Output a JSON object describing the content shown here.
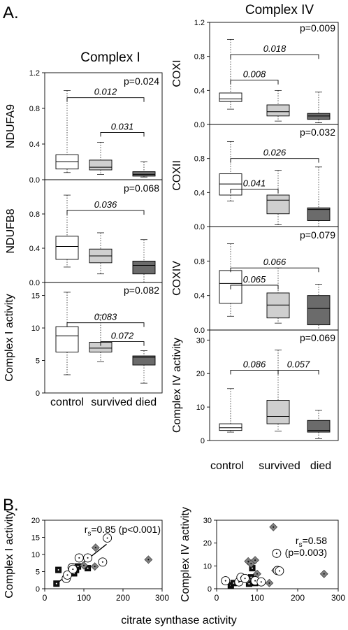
{
  "section_a_label": "A.",
  "section_b_label": "B.",
  "complex1_title": "Complex I",
  "complex4_title": "Complex IV",
  "group_labels": [
    "control",
    "survived",
    "died"
  ],
  "colors": {
    "control": "#ffffff",
    "survived": "#cfcfcf",
    "died": "#6b6b6b",
    "grid": "#000000"
  },
  "chart_data": [
    {
      "type": "box",
      "id": "ndufa9",
      "ylabel": "NDUFA9",
      "ylim": [
        0,
        1.2
      ],
      "yticks": [
        "0.0",
        "0.4",
        "0.8",
        "1.2"
      ],
      "p": "p=0.024",
      "boxes": [
        {
          "group": "control",
          "min": 0.08,
          "q1": 0.12,
          "median": 0.2,
          "q3": 0.28,
          "max": 1.0
        },
        {
          "group": "survived",
          "min": 0.06,
          "q1": 0.11,
          "median": 0.14,
          "q3": 0.22,
          "max": 0.42
        },
        {
          "group": "died",
          "min": 0.03,
          "q1": 0.04,
          "median": 0.06,
          "q3": 0.09,
          "max": 0.2
        }
      ],
      "brackets": [
        {
          "from": 0,
          "to": 2,
          "y": 0.92,
          "label": "0.012"
        },
        {
          "from": 1,
          "to": 2,
          "y": 0.53,
          "label": "0.031"
        }
      ]
    },
    {
      "type": "box",
      "id": "ndufb8",
      "ylabel": "NDUFB8",
      "ylim": [
        0,
        1.2
      ],
      "yticks": [
        "0.0",
        "0.4",
        "0.8"
      ],
      "p": "p=0.068",
      "boxes": [
        {
          "group": "control",
          "min": 0.18,
          "q1": 0.27,
          "median": 0.42,
          "q3": 0.54,
          "max": 1.02
        },
        {
          "group": "survived",
          "min": 0.1,
          "q1": 0.23,
          "median": 0.31,
          "q3": 0.39,
          "max": 0.58
        },
        {
          "group": "died",
          "min": 0.0,
          "q1": 0.1,
          "median": 0.2,
          "q3": 0.25,
          "max": 0.5
        }
      ],
      "brackets": [
        {
          "from": 0,
          "to": 2,
          "y": 0.84,
          "label": "0.036"
        }
      ]
    },
    {
      "type": "box",
      "id": "complex1",
      "ylabel": "Complex I activity",
      "ylim": [
        0,
        17
      ],
      "yticks": [
        "0",
        "5",
        "10",
        "15"
      ],
      "p": "p=0.082",
      "boxes": [
        {
          "group": "control",
          "min": 2.8,
          "q1": 6.3,
          "median": 8.8,
          "q3": 10.2,
          "max": 15.5
        },
        {
          "group": "survived",
          "min": 4.8,
          "q1": 6.3,
          "median": 6.9,
          "q3": 7.8,
          "max": 12.0
        },
        {
          "group": "died",
          "min": 1.5,
          "q1": 4.3,
          "median": 5.5,
          "q3": 5.7,
          "max": 6.5
        }
      ],
      "brackets": [
        {
          "from": 0,
          "to": 2,
          "y": 10.8,
          "label": "0.083"
        },
        {
          "from": 1,
          "to": 2,
          "y": 7.9,
          "label": "0.072"
        }
      ]
    },
    {
      "type": "box",
      "id": "coxi",
      "ylabel": "COXI",
      "ylim": [
        0,
        1.2
      ],
      "yticks": [
        "0.0",
        "0.4",
        "0.8",
        "1.2"
      ],
      "p": "p=0.009",
      "boxes": [
        {
          "group": "control",
          "min": 0.18,
          "q1": 0.27,
          "median": 0.3,
          "q3": 0.37,
          "max": 1.0
        },
        {
          "group": "survived",
          "min": 0.04,
          "q1": 0.1,
          "median": 0.15,
          "q3": 0.23,
          "max": 0.4
        },
        {
          "group": "died",
          "min": 0.02,
          "q1": 0.06,
          "median": 0.1,
          "q3": 0.13,
          "max": 0.38
        }
      ],
      "brackets": [
        {
          "from": 0,
          "to": 2,
          "y": 0.82,
          "label": "0.018"
        },
        {
          "from": 0,
          "to": 1,
          "y": 0.52,
          "label": "0.008"
        }
      ]
    },
    {
      "type": "box",
      "id": "coxii",
      "ylabel": "COXII",
      "ylim": [
        0,
        1.2
      ],
      "yticks": [
        "0.0",
        "0.4",
        "0.8"
      ],
      "p": "p=0.032",
      "boxes": [
        {
          "group": "control",
          "min": 0.3,
          "q1": 0.37,
          "median": 0.5,
          "q3": 0.62,
          "max": 1.0
        },
        {
          "group": "survived",
          "min": 0.02,
          "q1": 0.15,
          "median": 0.31,
          "q3": 0.37,
          "max": 0.66
        },
        {
          "group": "died",
          "min": 0.0,
          "q1": 0.07,
          "median": 0.2,
          "q3": 0.22,
          "max": 0.7
        }
      ],
      "brackets": [
        {
          "from": 0,
          "to": 2,
          "y": 0.8,
          "label": "0.026"
        },
        {
          "from": 0,
          "to": 1,
          "y": 0.44,
          "label": "0.041"
        }
      ]
    },
    {
      "type": "box",
      "id": "coxiv",
      "ylabel": "COXIV",
      "ylim": [
        0,
        1.2
      ],
      "yticks": [
        "0.0",
        "0.4",
        "0.8"
      ],
      "p": "p=0.079",
      "boxes": [
        {
          "group": "control",
          "min": 0.16,
          "q1": 0.31,
          "median": 0.54,
          "q3": 0.69,
          "max": 1.0
        },
        {
          "group": "survived",
          "min": 0.08,
          "q1": 0.14,
          "median": 0.29,
          "q3": 0.43,
          "max": 0.72
        },
        {
          "group": "died",
          "min": 0.0,
          "q1": 0.06,
          "median": 0.25,
          "q3": 0.4,
          "max": 0.53
        }
      ],
      "brackets": [
        {
          "from": 0,
          "to": 2,
          "y": 0.72,
          "label": "0.066"
        },
        {
          "from": 0,
          "to": 1,
          "y": 0.52,
          "label": "0.065"
        }
      ]
    },
    {
      "type": "box",
      "id": "complex4",
      "ylabel": "Complex IV activity",
      "ylim": [
        0,
        33
      ],
      "yticks": [
        "0",
        "10",
        "20",
        "30"
      ],
      "p": "p=0.069",
      "boxes": [
        {
          "group": "control",
          "min": 2.5,
          "q1": 3.0,
          "median": 3.8,
          "q3": 5.0,
          "max": 15.5
        },
        {
          "group": "survived",
          "min": 2.8,
          "q1": 5.0,
          "median": 7.2,
          "q3": 12.0,
          "max": 27.0
        },
        {
          "group": "died",
          "min": 0.5,
          "q1": 2.5,
          "median": 3.0,
          "q3": 6.0,
          "max": 9.0
        }
      ],
      "brackets": [
        {
          "from": 0,
          "to": 1,
          "y": 21.0,
          "label": "0.086"
        },
        {
          "from": 1,
          "to": 2,
          "y": 21.0,
          "label": "0.057"
        }
      ]
    },
    {
      "type": "scatter",
      "id": "scatter-c1",
      "ylabel": "Complex I activity",
      "xlim": [
        0,
        300
      ],
      "ylim": [
        0,
        20
      ],
      "xticks": [
        "0",
        "100",
        "200",
        "300"
      ],
      "yticks": [
        "0",
        "5",
        "10",
        "15",
        "20"
      ],
      "stat_main": "r",
      "stat_sub": "s",
      "stat_rest": "=0.85 (p<0.001)",
      "fit": [
        [
          28,
          1.3
        ],
        [
          158,
          13.0
        ]
      ],
      "points": [
        {
          "x": 30,
          "y": 1.5,
          "g": "square"
        },
        {
          "x": 35,
          "y": 5.5,
          "g": "square"
        },
        {
          "x": 75,
          "y": 4.5,
          "g": "square"
        },
        {
          "x": 80,
          "y": 5.5,
          "g": "square"
        },
        {
          "x": 85,
          "y": 6.5,
          "g": "square"
        },
        {
          "x": 110,
          "y": 6.0,
          "g": "square"
        },
        {
          "x": 130,
          "y": 12.0,
          "g": "diamond"
        },
        {
          "x": 128,
          "y": 6.5,
          "g": "diamond"
        },
        {
          "x": 100,
          "y": 6.8,
          "g": "diamond"
        },
        {
          "x": 265,
          "y": 8.5,
          "g": "diamond"
        },
        {
          "x": 55,
          "y": 3.0,
          "g": "circle"
        },
        {
          "x": 58,
          "y": 4.0,
          "g": "circle"
        },
        {
          "x": 70,
          "y": 6.2,
          "g": "circle"
        },
        {
          "x": 72,
          "y": 5.7,
          "g": "circle"
        },
        {
          "x": 88,
          "y": 9.0,
          "g": "circle"
        },
        {
          "x": 110,
          "y": 9.0,
          "g": "circle"
        },
        {
          "x": 148,
          "y": 7.8,
          "g": "circle"
        },
        {
          "x": 160,
          "y": 14.8,
          "g": "circle"
        }
      ]
    },
    {
      "type": "scatter",
      "id": "scatter-c4",
      "ylabel": "Complex IV activity",
      "xlim": [
        0,
        300
      ],
      "ylim": [
        0,
        30
      ],
      "xticks": [
        "0",
        "100",
        "200",
        "300"
      ],
      "yticks": [
        "0",
        "10",
        "20",
        "30"
      ],
      "stat_main": "r",
      "stat_sub": "s",
      "stat_rest": "=0.58",
      "stat_line2": "(p=0.003)",
      "fit": [],
      "points": [
        {
          "x": 35,
          "y": 1.5,
          "g": "square"
        },
        {
          "x": 42,
          "y": 2.5,
          "g": "square"
        },
        {
          "x": 80,
          "y": 2.2,
          "g": "square"
        },
        {
          "x": 85,
          "y": 5.0,
          "g": "square"
        },
        {
          "x": 88,
          "y": 9.0,
          "g": "square"
        },
        {
          "x": 95,
          "y": 2.5,
          "g": "square"
        },
        {
          "x": 78,
          "y": 12.0,
          "g": "diamond"
        },
        {
          "x": 85,
          "y": 11.0,
          "g": "diamond"
        },
        {
          "x": 95,
          "y": 12.5,
          "g": "diamond"
        },
        {
          "x": 100,
          "y": 6.5,
          "g": "diamond"
        },
        {
          "x": 75,
          "y": 4.0,
          "g": "diamond"
        },
        {
          "x": 130,
          "y": 2.5,
          "g": "diamond"
        },
        {
          "x": 140,
          "y": 27.0,
          "g": "diamond"
        },
        {
          "x": 145,
          "y": 8.0,
          "g": "diamond"
        },
        {
          "x": 265,
          "y": 6.5,
          "g": "diamond"
        },
        {
          "x": 22,
          "y": 3.5,
          "g": "circle"
        },
        {
          "x": 55,
          "y": 3.0,
          "g": "circle"
        },
        {
          "x": 60,
          "y": 5.0,
          "g": "circle"
        },
        {
          "x": 70,
          "y": 4.5,
          "g": "circle"
        },
        {
          "x": 95,
          "y": 3.5,
          "g": "circle"
        },
        {
          "x": 110,
          "y": 3.0,
          "g": "circle"
        },
        {
          "x": 148,
          "y": 15.5,
          "g": "circle"
        },
        {
          "x": 150,
          "y": 8.0,
          "g": "circle"
        },
        {
          "x": 155,
          "y": 7.8,
          "g": "circle"
        }
      ]
    }
  ],
  "scatter_xlabel": "citrate synthase activity"
}
